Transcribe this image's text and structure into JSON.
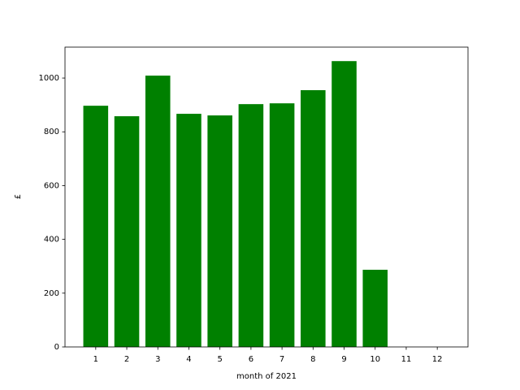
{
  "chart_data": {
    "type": "bar",
    "x": [
      1,
      2,
      3,
      4,
      5,
      6,
      7,
      8,
      9,
      10,
      11,
      12
    ],
    "values": [
      897,
      858,
      1009,
      867,
      861,
      903,
      906,
      955,
      1063,
      287,
      0,
      0
    ],
    "color": "#008000",
    "x_label": "month of 2021",
    "y_label": "£",
    "xlim": [
      0.01,
      12.99
    ],
    "xticks": [
      1,
      2,
      3,
      4,
      5,
      6,
      7,
      8,
      9,
      10,
      11,
      12
    ],
    "ylim": [
      0,
      1115
    ],
    "yticks": [
      0,
      200,
      400,
      600,
      800,
      1000
    ]
  }
}
